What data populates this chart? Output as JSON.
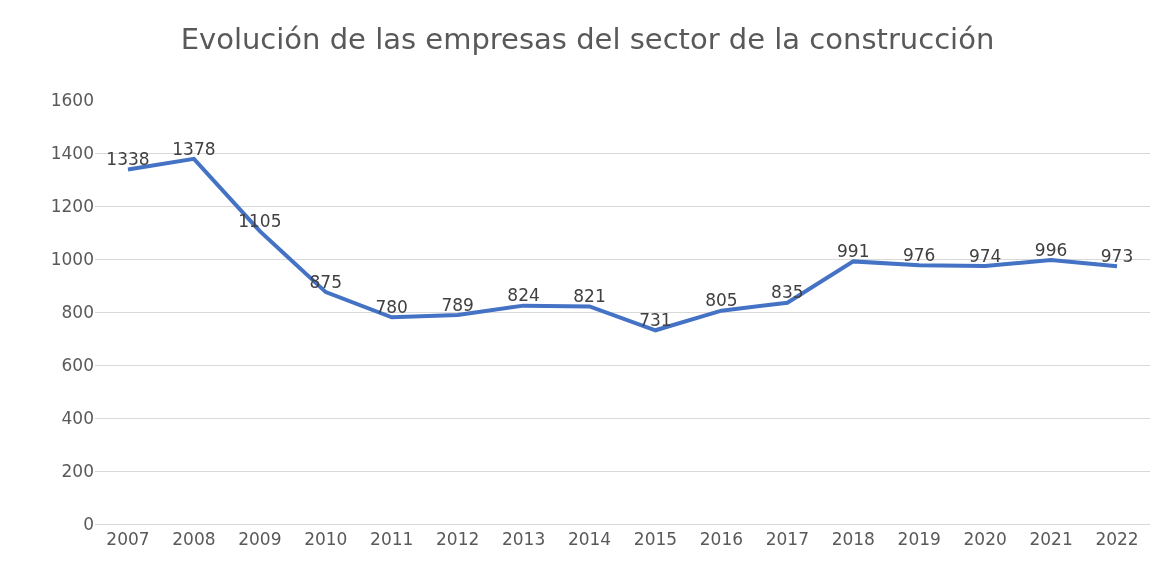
{
  "chart_data": {
    "type": "line",
    "title": "Evolución de las empresas del sector de la construcción",
    "categories": [
      "2007",
      "2008",
      "2009",
      "2010",
      "2011",
      "2012",
      "2013",
      "2014",
      "2015",
      "2016",
      "2017",
      "2018",
      "2019",
      "2020",
      "2021",
      "2022"
    ],
    "series": [
      {
        "color": "#4472c4",
        "values": [
          1338,
          1378,
          1105,
          875,
          780,
          789,
          824,
          821,
          731,
          805,
          835,
          991,
          976,
          974,
          996,
          973
        ]
      }
    ],
    "ylim": [
      0,
      1600
    ],
    "yticks": [
      0,
      200,
      400,
      600,
      800,
      1000,
      1200,
      1400,
      1600
    ],
    "grid": "y",
    "data_labels": true,
    "marker": "none",
    "line_style": "solid",
    "legend": false
  }
}
